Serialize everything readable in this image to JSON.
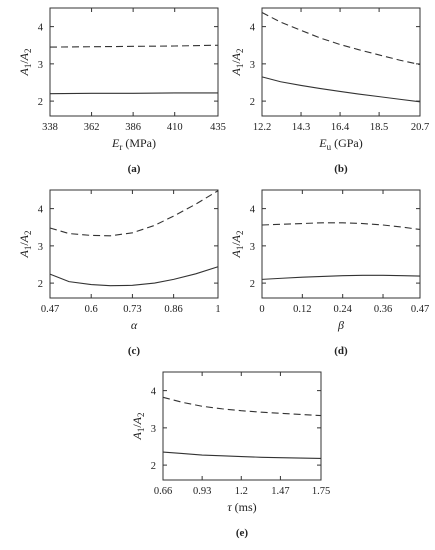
{
  "chart_data": [
    {
      "type": "line",
      "panel_label": "(a)",
      "xlabel": "E",
      "xlabel_sub": "r",
      "xlabel_unit": "(MPa)",
      "ylabel": "A",
      "ylabel_sub1": "1",
      "ylabel_mid": "/A",
      "ylabel_sub2": "2",
      "xticks": [
        "338",
        "362",
        "386",
        "410",
        "435"
      ],
      "xtick_values": [
        338,
        362,
        386,
        410,
        435
      ],
      "yticks": [
        "2",
        "3",
        "4"
      ],
      "ytick_values": [
        2,
        3,
        4
      ],
      "xlim": [
        338,
        435
      ],
      "ylim": [
        1.6,
        4.5
      ],
      "grid": false,
      "series": [
        {
          "style": "dashed",
          "x": [
            338,
            362,
            386,
            410,
            435
          ],
          "y": [
            3.45,
            3.46,
            3.47,
            3.48,
            3.5
          ]
        },
        {
          "style": "solid",
          "x": [
            338,
            362,
            386,
            410,
            435
          ],
          "y": [
            2.2,
            2.21,
            2.21,
            2.22,
            2.22
          ]
        }
      ]
    },
    {
      "type": "line",
      "panel_label": "(b)",
      "xlabel": "E",
      "xlabel_sub": "u",
      "xlabel_unit": "(GPa)",
      "ylabel": "A",
      "ylabel_sub1": "1",
      "ylabel_mid": "/A",
      "ylabel_sub2": "2",
      "xticks": [
        "12.2",
        "14.3",
        "16.4",
        "18.5",
        "20.7"
      ],
      "xtick_values": [
        12.2,
        14.3,
        16.4,
        18.5,
        20.7
      ],
      "yticks": [
        "2",
        "3",
        "4"
      ],
      "ytick_values": [
        2,
        3,
        4
      ],
      "xlim": [
        12.2,
        20.7
      ],
      "ylim": [
        1.6,
        4.5
      ],
      "grid": false,
      "series": [
        {
          "style": "dashed",
          "x": [
            12.2,
            13.2,
            14.3,
            15.3,
            16.4,
            17.4,
            18.5,
            19.6,
            20.7
          ],
          "y": [
            4.38,
            4.12,
            3.9,
            3.7,
            3.52,
            3.38,
            3.24,
            3.1,
            2.98
          ]
        },
        {
          "style": "solid",
          "x": [
            12.2,
            13.2,
            14.3,
            15.3,
            16.4,
            17.4,
            18.5,
            19.6,
            20.7
          ],
          "y": [
            2.65,
            2.52,
            2.42,
            2.34,
            2.26,
            2.19,
            2.12,
            2.05,
            1.98
          ]
        }
      ]
    },
    {
      "type": "line",
      "panel_label": "(c)",
      "xlabel": "α",
      "xlabel_sub": "",
      "xlabel_unit": "",
      "ylabel": "A",
      "ylabel_sub1": "1",
      "ylabel_mid": "/A",
      "ylabel_sub2": "2",
      "xticks": [
        "0.47",
        "0.6",
        "0.73",
        "0.86",
        "1"
      ],
      "xtick_values": [
        0.47,
        0.6,
        0.73,
        0.86,
        1.0
      ],
      "yticks": [
        "2",
        "3",
        "4"
      ],
      "ytick_values": [
        2,
        3,
        4
      ],
      "xlim": [
        0.47,
        1.0
      ],
      "ylim": [
        1.6,
        4.5
      ],
      "grid": false,
      "series": [
        {
          "style": "dashed",
          "x": [
            0.47,
            0.53,
            0.6,
            0.66,
            0.73,
            0.8,
            0.86,
            0.93,
            1.0
          ],
          "y": [
            3.48,
            3.33,
            3.28,
            3.27,
            3.35,
            3.55,
            3.8,
            4.12,
            4.48
          ]
        },
        {
          "style": "solid",
          "x": [
            0.47,
            0.53,
            0.6,
            0.66,
            0.73,
            0.8,
            0.86,
            0.93,
            1.0
          ],
          "y": [
            2.24,
            2.04,
            1.96,
            1.93,
            1.94,
            2.0,
            2.1,
            2.25,
            2.44
          ]
        }
      ]
    },
    {
      "type": "line",
      "panel_label": "(d)",
      "xlabel": "β",
      "xlabel_sub": "",
      "xlabel_unit": "",
      "ylabel": "A",
      "ylabel_sub1": "1",
      "ylabel_mid": "/A",
      "ylabel_sub2": "2",
      "xticks": [
        "0",
        "0.12",
        "0.24",
        "0.36",
        "0.47"
      ],
      "xtick_values": [
        0,
        0.12,
        0.24,
        0.36,
        0.47
      ],
      "yticks": [
        "2",
        "3",
        "4"
      ],
      "ytick_values": [
        2,
        3,
        4
      ],
      "xlim": [
        0,
        0.47
      ],
      "ylim": [
        1.6,
        4.5
      ],
      "grid": false,
      "series": [
        {
          "style": "dashed",
          "x": [
            0,
            0.06,
            0.12,
            0.18,
            0.24,
            0.3,
            0.36,
            0.42,
            0.47
          ],
          "y": [
            3.56,
            3.58,
            3.6,
            3.62,
            3.62,
            3.6,
            3.56,
            3.5,
            3.44
          ]
        },
        {
          "style": "solid",
          "x": [
            0,
            0.06,
            0.12,
            0.18,
            0.24,
            0.3,
            0.36,
            0.42,
            0.47
          ],
          "y": [
            2.1,
            2.13,
            2.16,
            2.18,
            2.2,
            2.21,
            2.21,
            2.2,
            2.19
          ]
        }
      ]
    },
    {
      "type": "line",
      "panel_label": "(e)",
      "xlabel": "τ",
      "xlabel_sub": "",
      "xlabel_unit": "(ms)",
      "ylabel": "A",
      "ylabel_sub1": "1",
      "ylabel_mid": "/A",
      "ylabel_sub2": "2",
      "xticks": [
        "0.66",
        "0.93",
        "1.2",
        "1.47",
        "1.75"
      ],
      "xtick_values": [
        0.66,
        0.93,
        1.2,
        1.47,
        1.75
      ],
      "yticks": [
        "2",
        "3",
        "4"
      ],
      "ytick_values": [
        2,
        3,
        4
      ],
      "xlim": [
        0.66,
        1.75
      ],
      "ylim": [
        1.6,
        4.5
      ],
      "grid": false,
      "series": [
        {
          "style": "dashed",
          "x": [
            0.66,
            0.8,
            0.93,
            1.07,
            1.2,
            1.34,
            1.47,
            1.61,
            1.75
          ],
          "y": [
            3.82,
            3.68,
            3.58,
            3.51,
            3.46,
            3.42,
            3.39,
            3.36,
            3.33
          ]
        },
        {
          "style": "solid",
          "x": [
            0.66,
            0.8,
            0.93,
            1.07,
            1.2,
            1.34,
            1.47,
            1.61,
            1.75
          ],
          "y": [
            2.35,
            2.31,
            2.27,
            2.25,
            2.23,
            2.21,
            2.2,
            2.19,
            2.18
          ]
        }
      ]
    }
  ]
}
